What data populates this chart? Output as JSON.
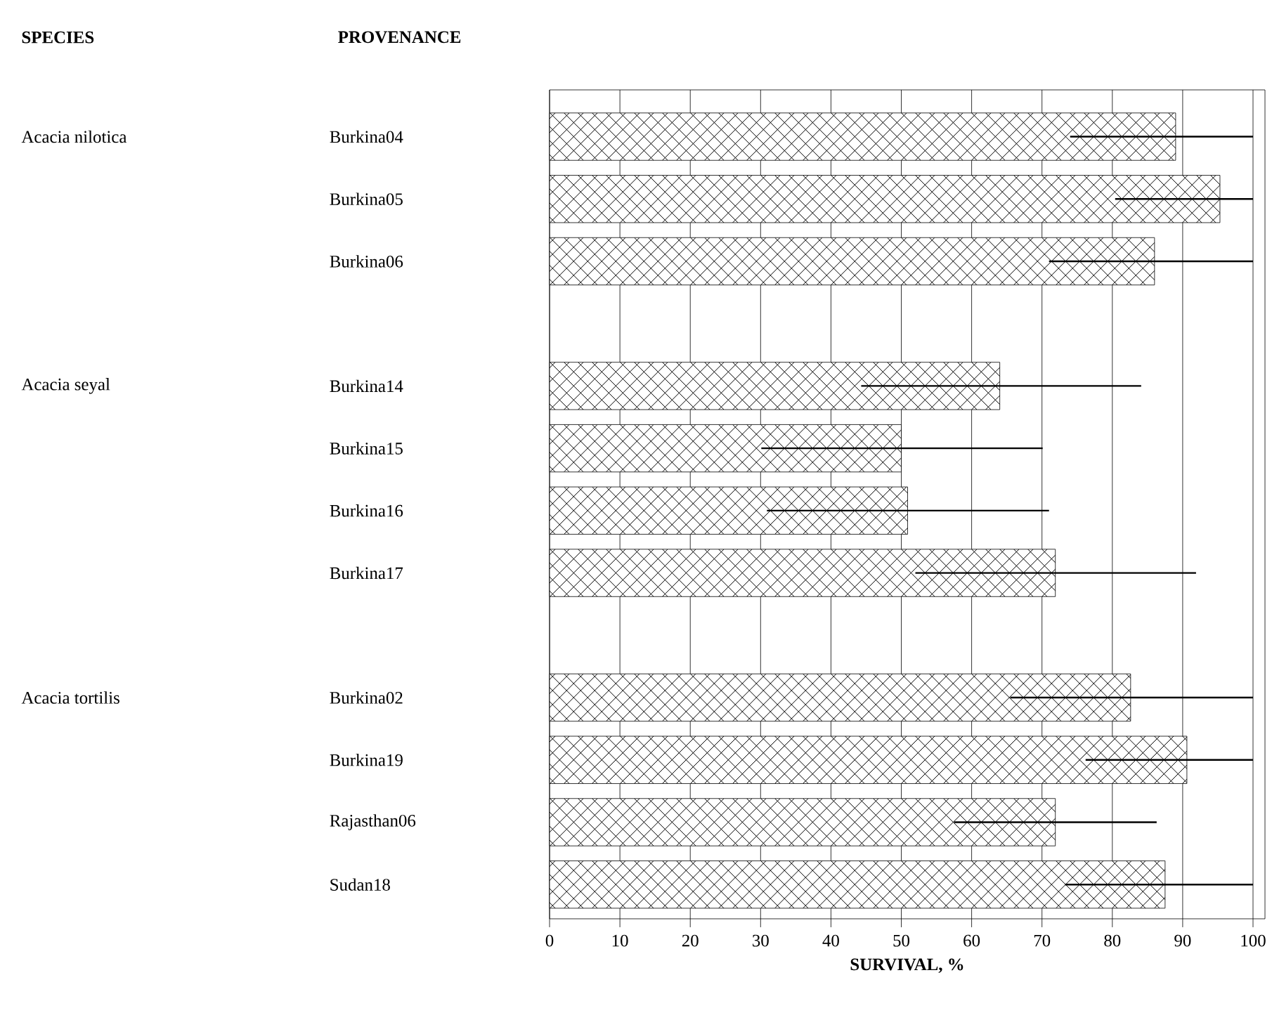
{
  "chart_data": {
    "type": "bar",
    "orientation": "horizontal",
    "xlabel": "SURVIVAL, %",
    "ylabel": "PROVENANCE",
    "categories": [
      "Burkina04",
      "Burkina05",
      "Burkina06",
      null,
      "Burkina14",
      "Burkina15",
      "Burkina16",
      "Burkina17",
      null,
      "Burkina02",
      "Burkina19",
      "Rajasthan06",
      "Sudan18"
    ],
    "values": [
      89.0,
      95.3,
      86.0,
      null,
      64.0,
      50.0,
      50.9,
      71.9,
      null,
      82.6,
      90.6,
      71.9,
      87.5
    ],
    "errors": [
      [
        74.0,
        100
      ],
      [
        80.4,
        100
      ],
      [
        71.0,
        100
      ],
      null,
      [
        44.3,
        84.1
      ],
      [
        30.1,
        70.1
      ],
      [
        30.9,
        71.0
      ],
      [
        52.0,
        91.9
      ],
      null,
      [
        65.5,
        100
      ],
      [
        76.2,
        100
      ],
      [
        57.5,
        86.3
      ],
      [
        73.3,
        100
      ]
    ],
    "color": "#000000",
    "xlim": [
      0,
      101.7
    ],
    "xticks": [
      0,
      10,
      20,
      30,
      40,
      50,
      60,
      70,
      80,
      90,
      100
    ],
    "grid": "x",
    "annotations": [
      "SPECIES",
      "Acacia nilotica",
      "Acacia seyal",
      "Acacia tortilis"
    ]
  }
}
